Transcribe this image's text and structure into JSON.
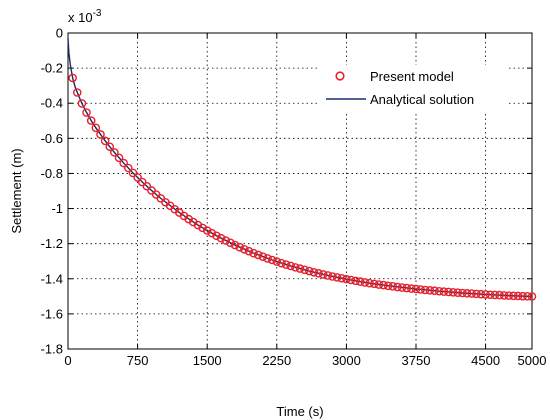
{
  "chart_data": {
    "type": "line",
    "xlabel": "Time  (s)",
    "ylabel": "Settlement  (m)",
    "y_multiplier_label": "x 10",
    "y_multiplier_exponent": "-3",
    "xlim": [
      0,
      5000
    ],
    "ylim": [
      -1.8,
      0
    ],
    "x_ticks": [
      0,
      750,
      1500,
      2250,
      3000,
      3750,
      4500,
      5000
    ],
    "x_tick_labels": [
      "0",
      "750",
      "1500",
      "2250",
      "3000",
      "3750",
      "4500",
      "5000"
    ],
    "y_ticks": [
      0,
      -0.2,
      -0.4,
      -0.6,
      -0.8,
      -1,
      -1.2,
      -1.4,
      -1.6,
      -1.8
    ],
    "y_tick_labels": [
      "0",
      "-0.2",
      "-0.4",
      "-0.6",
      "-0.8",
      "-1",
      "-1.2",
      "-1.4",
      "-1.6",
      "-1.8"
    ],
    "grid": true,
    "legend_position": "top-right",
    "series": [
      {
        "name": "Present model",
        "style": "circle-markers",
        "color": "#e8202a",
        "x": [
          50,
          100,
          150,
          200,
          250,
          300,
          350,
          400,
          450,
          500,
          550,
          600,
          650,
          700,
          750,
          800,
          850,
          900,
          950,
          1000,
          1050,
          1100,
          1150,
          1200,
          1250,
          1300,
          1350,
          1400,
          1450,
          1500,
          1550,
          1600,
          1650,
          1700,
          1750,
          1800,
          1850,
          1900,
          1950,
          2000,
          2050,
          2100,
          2150,
          2200,
          2250,
          2300,
          2350,
          2400,
          2450,
          2500,
          2550,
          2600,
          2650,
          2700,
          2750,
          2800,
          2850,
          2900,
          2950,
          3000,
          3050,
          3100,
          3150,
          3200,
          3250,
          3300,
          3350,
          3400,
          3450,
          3500,
          3550,
          3600,
          3650,
          3700,
          3750,
          3800,
          3850,
          3900,
          3950,
          4000,
          4050,
          4100,
          4150,
          4200,
          4250,
          4300,
          4350,
          4400,
          4450,
          4500,
          4550,
          4600,
          4650,
          4700,
          4750,
          4800,
          4850,
          4900,
          4950,
          5000
        ],
        "y": [
          -0.256,
          -0.339,
          -0.401,
          -0.453,
          -0.499,
          -0.54,
          -0.578,
          -0.614,
          -0.648,
          -0.68,
          -0.711,
          -0.741,
          -0.769,
          -0.797,
          -0.823,
          -0.849,
          -0.873,
          -0.897,
          -0.92,
          -0.942,
          -0.964,
          -0.984,
          -1.004,
          -1.023,
          -1.042,
          -1.06,
          -1.077,
          -1.094,
          -1.11,
          -1.125,
          -1.14,
          -1.155,
          -1.169,
          -1.182,
          -1.195,
          -1.208,
          -1.22,
          -1.232,
          -1.243,
          -1.254,
          -1.264,
          -1.274,
          -1.284,
          -1.293,
          -1.302,
          -1.311,
          -1.319,
          -1.327,
          -1.335,
          -1.342,
          -1.349,
          -1.356,
          -1.363,
          -1.369,
          -1.375,
          -1.381,
          -1.387,
          -1.392,
          -1.397,
          -1.402,
          -1.407,
          -1.412,
          -1.416,
          -1.421,
          -1.425,
          -1.429,
          -1.433,
          -1.436,
          -1.44,
          -1.443,
          -1.447,
          -1.45,
          -1.453,
          -1.456,
          -1.458,
          -1.461,
          -1.464,
          -1.466,
          -1.468,
          -1.471,
          -1.473,
          -1.475,
          -1.477,
          -1.479,
          -1.481,
          -1.483,
          -1.484,
          -1.486,
          -1.488,
          -1.489,
          -1.491,
          -1.492,
          -1.493,
          -1.495,
          -1.496,
          -1.497,
          -1.498,
          -1.499,
          -1.5,
          -1.501
        ]
      },
      {
        "name": "Analytical solution",
        "style": "solid-line",
        "color": "#1a2a6c",
        "x": [
          0,
          10,
          25,
          50,
          75,
          100,
          150,
          200,
          250,
          300,
          400,
          500,
          600,
          700,
          800,
          900,
          1000,
          1200,
          1400,
          1600,
          1800,
          2000,
          2200,
          2400,
          2600,
          2800,
          3000,
          3250,
          3500,
          3750,
          4000,
          4250,
          4500,
          4750,
          5000
        ],
        "y": [
          -0.03,
          -0.115,
          -0.181,
          -0.256,
          -0.304,
          -0.339,
          -0.401,
          -0.453,
          -0.499,
          -0.54,
          -0.614,
          -0.68,
          -0.741,
          -0.797,
          -0.849,
          -0.897,
          -0.942,
          -1.023,
          -1.094,
          -1.155,
          -1.208,
          -1.254,
          -1.293,
          -1.327,
          -1.356,
          -1.381,
          -1.402,
          -1.425,
          -1.443,
          -1.458,
          -1.471,
          -1.481,
          -1.489,
          -1.496,
          -1.501
        ]
      }
    ]
  }
}
